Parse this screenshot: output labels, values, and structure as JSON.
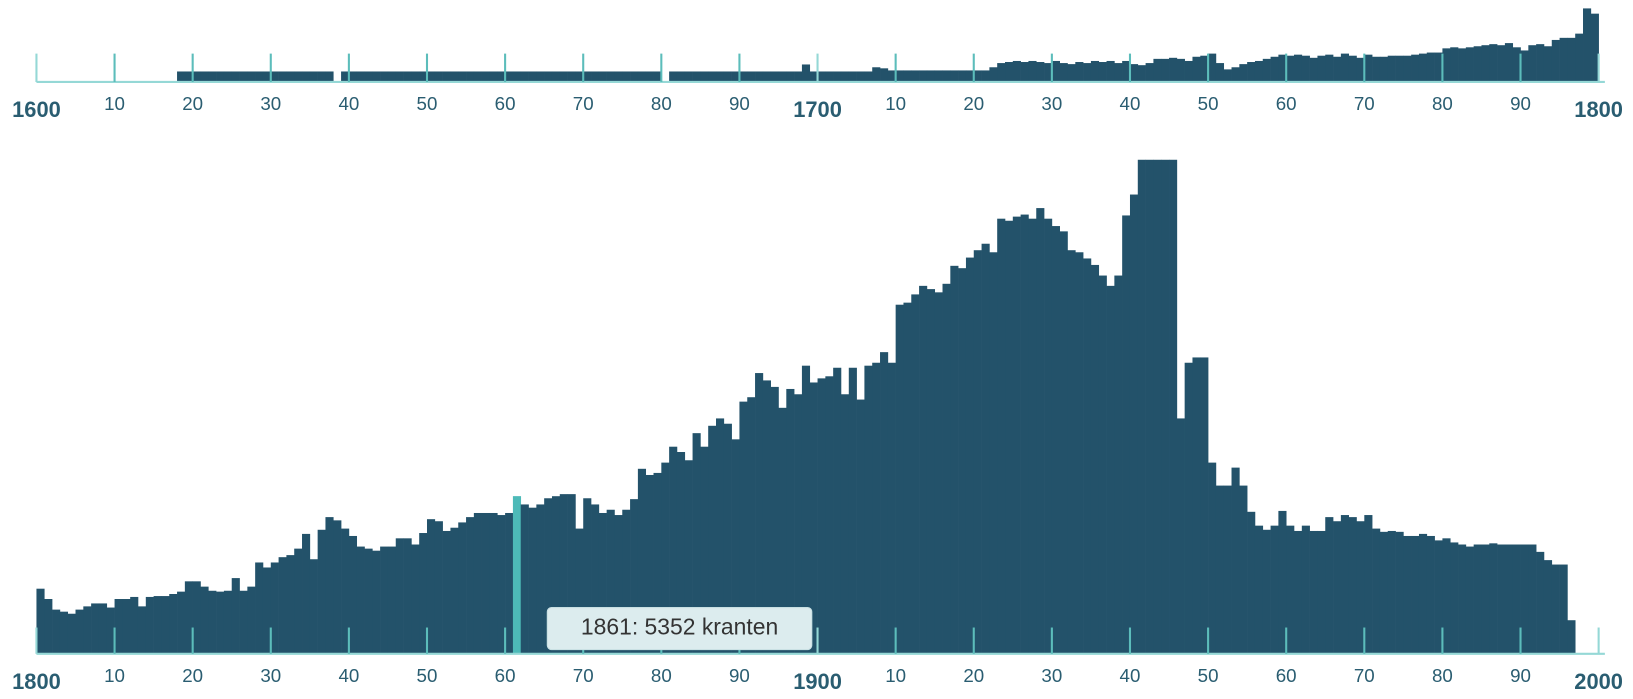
{
  "chart_data": [
    {
      "type": "histogram",
      "color": "#23526a",
      "axis_color": "#95d8d6",
      "tick_color": "#5cbdbb",
      "label_color": "#2a5d71",
      "xlim": [
        1600,
        1800
      ],
      "ylim": [
        0,
        2100
      ],
      "xticks": [
        1600,
        {
          "value": 1610,
          "label": "10"
        },
        {
          "value": 1620,
          "label": "20"
        },
        {
          "value": 1630,
          "label": "30"
        },
        {
          "value": 1640,
          "label": "40"
        },
        {
          "value": 1650,
          "label": "50"
        },
        {
          "value": 1660,
          "label": "60"
        },
        {
          "value": 1670,
          "label": "70"
        },
        {
          "value": 1680,
          "label": "80"
        },
        {
          "value": 1690,
          "label": "90"
        },
        1700,
        {
          "value": 1710,
          "label": "10"
        },
        {
          "value": 1720,
          "label": "20"
        },
        {
          "value": 1730,
          "label": "30"
        },
        {
          "value": 1740,
          "label": "40"
        },
        {
          "value": 1750,
          "label": "50"
        },
        {
          "value": 1760,
          "label": "60"
        },
        {
          "value": 1770,
          "label": "70"
        },
        {
          "value": 1780,
          "label": "80"
        },
        {
          "value": 1790,
          "label": "90"
        },
        1800
      ],
      "x": [
        1600,
        1601,
        1602,
        1603,
        1604,
        1605,
        1606,
        1607,
        1608,
        1609,
        1610,
        1611,
        1612,
        1613,
        1614,
        1615,
        1616,
        1617,
        1618,
        1619,
        1620,
        1621,
        1622,
        1623,
        1624,
        1625,
        1626,
        1627,
        1628,
        1629,
        1630,
        1631,
        1632,
        1633,
        1634,
        1635,
        1636,
        1637,
        1638,
        1639,
        1640,
        1641,
        1642,
        1643,
        1644,
        1645,
        1646,
        1647,
        1648,
        1649,
        1650,
        1651,
        1652,
        1653,
        1654,
        1655,
        1656,
        1657,
        1658,
        1659,
        1660,
        1661,
        1662,
        1663,
        1664,
        1665,
        1666,
        1667,
        1668,
        1669,
        1670,
        1671,
        1672,
        1673,
        1674,
        1675,
        1676,
        1677,
        1678,
        1679,
        1680,
        1681,
        1682,
        1683,
        1684,
        1685,
        1686,
        1687,
        1688,
        1689,
        1690,
        1691,
        1692,
        1693,
        1694,
        1695,
        1696,
        1697,
        1698,
        1699,
        1700,
        1701,
        1702,
        1703,
        1704,
        1705,
        1706,
        1707,
        1708,
        1709,
        1710,
        1711,
        1712,
        1713,
        1714,
        1715,
        1716,
        1717,
        1718,
        1719,
        1720,
        1721,
        1722,
        1723,
        1724,
        1725,
        1726,
        1727,
        1728,
        1729,
        1730,
        1731,
        1732,
        1733,
        1734,
        1735,
        1736,
        1737,
        1738,
        1739,
        1740,
        1741,
        1742,
        1743,
        1744,
        1745,
        1746,
        1747,
        1748,
        1749,
        1750,
        1751,
        1752,
        1753,
        1754,
        1755,
        1756,
        1757,
        1758,
        1759,
        1760,
        1761,
        1762,
        1763,
        1764,
        1765,
        1766,
        1767,
        1768,
        1769,
        1770,
        1771,
        1772,
        1773,
        1774,
        1775,
        1776,
        1777,
        1778,
        1779,
        1780,
        1781,
        1782,
        1783,
        1784,
        1785,
        1786,
        1787,
        1788,
        1789,
        1790,
        1791,
        1792,
        1793,
        1794,
        1795,
        1796,
        1797,
        1798,
        1799
      ],
      "values": [
        0,
        0,
        0,
        0,
        0,
        0,
        0,
        0,
        0,
        0,
        0,
        0,
        0,
        0,
        0,
        0,
        0,
        0,
        300,
        300,
        300,
        300,
        300,
        300,
        300,
        300,
        300,
        300,
        300,
        300,
        300,
        300,
        300,
        300,
        300,
        300,
        300,
        300,
        0,
        300,
        300,
        300,
        300,
        300,
        300,
        300,
        300,
        300,
        300,
        300,
        300,
        300,
        300,
        300,
        300,
        300,
        300,
        300,
        300,
        300,
        300,
        300,
        300,
        300,
        300,
        300,
        300,
        300,
        300,
        300,
        300,
        300,
        300,
        300,
        300,
        300,
        300,
        300,
        300,
        300,
        0,
        300,
        300,
        300,
        300,
        300,
        300,
        300,
        300,
        300,
        300,
        300,
        300,
        300,
        300,
        300,
        300,
        300,
        500,
        300,
        300,
        300,
        300,
        300,
        300,
        300,
        300,
        420,
        390,
        330,
        330,
        330,
        330,
        330,
        330,
        330,
        330,
        330,
        330,
        330,
        330,
        330,
        420,
        540,
        570,
        600,
        570,
        600,
        570,
        540,
        600,
        540,
        510,
        570,
        540,
        600,
        570,
        600,
        540,
        600,
        510,
        480,
        540,
        660,
        660,
        690,
        660,
        600,
        720,
        750,
        810,
        540,
        360,
        420,
        510,
        570,
        600,
        660,
        720,
        780,
        750,
        780,
        750,
        690,
        750,
        780,
        720,
        810,
        750,
        690,
        780,
        720,
        720,
        750,
        750,
        750,
        780,
        810,
        840,
        840,
        960,
        990,
        960,
        990,
        1020,
        1050,
        1080,
        1050,
        1110,
        990,
        900,
        1050,
        1080,
        1020,
        1200,
        1260,
        1260,
        1380,
        2100,
        1950
      ]
    },
    {
      "type": "histogram",
      "color": "#23526a",
      "axis_color": "#95d8d6",
      "tick_color": "#5cbdbb",
      "label_color": "#2a5d71",
      "xlim": [
        1800,
        2000
      ],
      "ylim": [
        0,
        16770
      ],
      "xticks": [
        1800,
        {
          "value": 1810,
          "label": "10"
        },
        {
          "value": 1820,
          "label": "20"
        },
        {
          "value": 1830,
          "label": "30"
        },
        {
          "value": 1840,
          "label": "40"
        },
        {
          "value": 1850,
          "label": "50"
        },
        {
          "value": 1860,
          "label": "60"
        },
        {
          "value": 1870,
          "label": "70"
        },
        {
          "value": 1880,
          "label": "80"
        },
        {
          "value": 1890,
          "label": "90"
        },
        1900,
        {
          "value": 1910,
          "label": "10"
        },
        {
          "value": 1920,
          "label": "20"
        },
        {
          "value": 1930,
          "label": "30"
        },
        {
          "value": 1940,
          "label": "40"
        },
        {
          "value": 1950,
          "label": "50"
        },
        {
          "value": 1960,
          "label": "60"
        },
        {
          "value": 1970,
          "label": "70"
        },
        {
          "value": 1980,
          "label": "80"
        },
        {
          "value": 1990,
          "label": "90"
        },
        2000
      ],
      "x": [
        1800,
        1801,
        1802,
        1803,
        1804,
        1805,
        1806,
        1807,
        1808,
        1809,
        1810,
        1811,
        1812,
        1813,
        1814,
        1815,
        1816,
        1817,
        1818,
        1819,
        1820,
        1821,
        1822,
        1823,
        1824,
        1825,
        1826,
        1827,
        1828,
        1829,
        1830,
        1831,
        1832,
        1833,
        1834,
        1835,
        1836,
        1837,
        1838,
        1839,
        1840,
        1841,
        1842,
        1843,
        1844,
        1845,
        1846,
        1847,
        1848,
        1849,
        1850,
        1851,
        1852,
        1853,
        1854,
        1855,
        1856,
        1857,
        1858,
        1859,
        1860,
        1861,
        1862,
        1863,
        1864,
        1865,
        1866,
        1867,
        1868,
        1869,
        1870,
        1871,
        1872,
        1873,
        1874,
        1875,
        1876,
        1877,
        1878,
        1879,
        1880,
        1881,
        1882,
        1883,
        1884,
        1885,
        1886,
        1887,
        1888,
        1889,
        1890,
        1891,
        1892,
        1893,
        1894,
        1895,
        1896,
        1897,
        1898,
        1899,
        1900,
        1901,
        1902,
        1903,
        1904,
        1905,
        1906,
        1907,
        1908,
        1909,
        1910,
        1911,
        1912,
        1913,
        1914,
        1915,
        1916,
        1917,
        1918,
        1919,
        1920,
        1921,
        1922,
        1923,
        1924,
        1925,
        1926,
        1927,
        1928,
        1929,
        1930,
        1931,
        1932,
        1933,
        1934,
        1935,
        1936,
        1937,
        1938,
        1939,
        1940,
        1941,
        1942,
        1943,
        1944,
        1945,
        1946,
        1947,
        1948,
        1949,
        1950,
        1951,
        1952,
        1953,
        1954,
        1955,
        1956,
        1957,
        1958,
        1959,
        1960,
        1961,
        1962,
        1963,
        1964,
        1965,
        1966,
        1967,
        1968,
        1969,
        1970,
        1971,
        1972,
        1973,
        1974,
        1975,
        1976,
        1977,
        1978,
        1979,
        1980,
        1981,
        1982,
        1983,
        1984,
        1985,
        1986,
        1987,
        1988,
        1989,
        1990,
        1991,
        1992,
        1993,
        1994,
        1995,
        1996,
        1997,
        1998,
        1999
      ],
      "values": [
        2210,
        1860,
        1500,
        1430,
        1360,
        1500,
        1610,
        1710,
        1710,
        1570,
        1860,
        1860,
        1930,
        1610,
        1930,
        1960,
        1960,
        2030,
        2110,
        2460,
        2460,
        2280,
        2140,
        2110,
        2140,
        2570,
        2140,
        2280,
        3100,
        2930,
        3100,
        3280,
        3350,
        3570,
        4070,
        3210,
        4210,
        4640,
        4530,
        4250,
        4000,
        3640,
        3570,
        3500,
        3640,
        3640,
        3920,
        3920,
        3710,
        4100,
        4570,
        4500,
        4170,
        4280,
        4460,
        4640,
        4780,
        4780,
        4780,
        4710,
        4780,
        5352,
        5070,
        4960,
        5070,
        5280,
        5350,
        5420,
        5420,
        4250,
        5280,
        5070,
        4780,
        4890,
        4710,
        4890,
        5250,
        6280,
        6070,
        6140,
        6490,
        7030,
        6850,
        6570,
        7490,
        7030,
        7740,
        7990,
        7810,
        7280,
        8560,
        8710,
        9530,
        9280,
        9060,
        8350,
        8990,
        8810,
        9780,
        9210,
        9350,
        9420,
        9710,
        8810,
        9710,
        8630,
        9780,
        9880,
        10240,
        9880,
        11850,
        11920,
        12200,
        12490,
        12380,
        12270,
        12560,
        13170,
        13090,
        13450,
        13700,
        13920,
        13630,
        14770,
        14700,
        14840,
        14910,
        14770,
        15130,
        14770,
        14520,
        14340,
        13700,
        13630,
        13420,
        13200,
        12840,
        12490,
        12840,
        14880,
        15590,
        16770,
        16770,
        16770,
        16770,
        16770,
        7990,
        9880,
        10060,
        10060,
        6490,
        5710,
        5710,
        6320,
        5710,
        4820,
        4350,
        4210,
        4350,
        4850,
        4350,
        4170,
        4350,
        4170,
        4170,
        4640,
        4500,
        4710,
        4640,
        4500,
        4710,
        4250,
        4140,
        4170,
        4140,
        4000,
        4000,
        4070,
        4000,
        3850,
        3920,
        3780,
        3710,
        3640,
        3710,
        3710,
        3750,
        3710,
        3710,
        3710,
        3710,
        3710,
        3460,
        3180,
        3030,
        3030,
        1140,
        0,
        0,
        0
      ],
      "highlight": 1861,
      "highlight_color": "#4dbab8",
      "tooltip": "1861: 5352 kranten"
    }
  ]
}
